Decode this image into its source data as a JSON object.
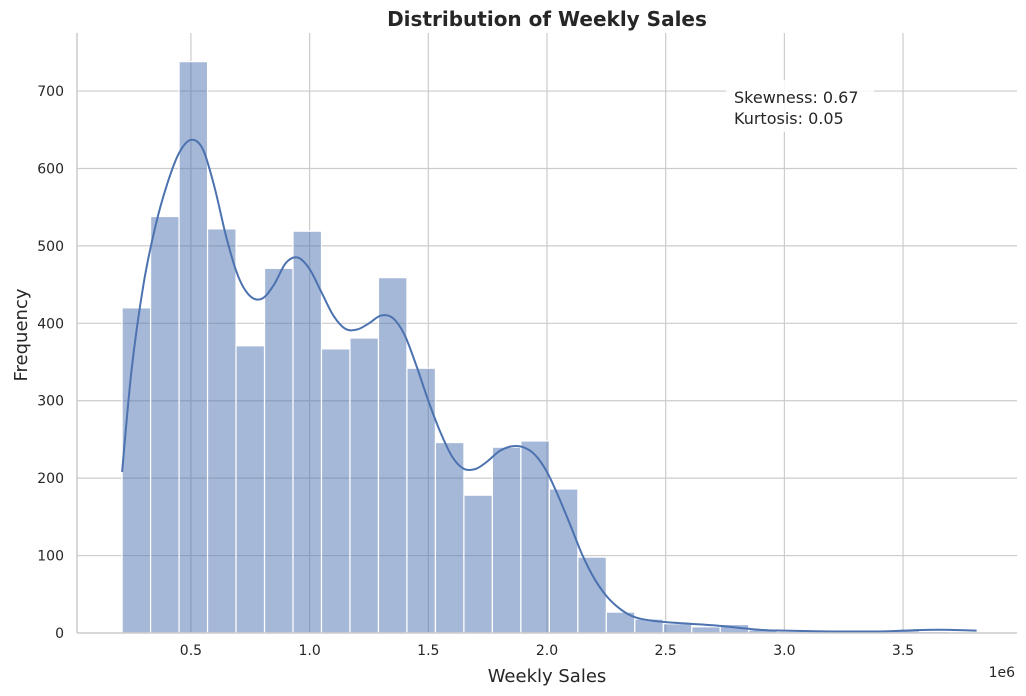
{
  "chart_data": {
    "type": "bar",
    "title": "Distribution of Weekly Sales",
    "xlabel": "Weekly Sales",
    "ylabel": "Frequency",
    "x_offset_label": "1e6",
    "xlim": [
      0.02,
      3.98
    ],
    "ylim": [
      0,
      775
    ],
    "xticks": [
      0.5,
      1.0,
      1.5,
      2.0,
      2.5,
      3.0,
      3.5
    ],
    "xtick_labels": [
      "0.5",
      "1.0",
      "1.5",
      "2.0",
      "2.5",
      "3.0",
      "3.5"
    ],
    "yticks": [
      0,
      100,
      200,
      300,
      400,
      500,
      600,
      700
    ],
    "ytick_labels": [
      "0",
      "100",
      "200",
      "300",
      "400",
      "500",
      "600",
      "700"
    ],
    "grid": true,
    "bin_edges": [
      0.21,
      0.33,
      0.45,
      0.57,
      0.69,
      0.81,
      0.93,
      1.05,
      1.17,
      1.29,
      1.41,
      1.53,
      1.65,
      1.77,
      1.89,
      2.01,
      2.13,
      2.25,
      2.37,
      2.49,
      2.61,
      2.73,
      2.85,
      2.97,
      3.09,
      3.21,
      3.33,
      3.45,
      3.57,
      3.69,
      3.81
    ],
    "values": [
      420,
      538,
      738,
      522,
      371,
      471,
      519,
      367,
      381,
      459,
      342,
      246,
      178,
      240,
      248,
      186,
      98,
      27,
      18,
      12,
      8,
      11,
      4,
      2,
      2,
      1,
      2,
      3,
      2,
      1
    ],
    "kde": {
      "x": [
        0.21,
        0.25,
        0.3,
        0.35,
        0.4,
        0.45,
        0.5,
        0.55,
        0.6,
        0.65,
        0.7,
        0.75,
        0.8,
        0.85,
        0.9,
        0.95,
        1.0,
        1.05,
        1.1,
        1.15,
        1.2,
        1.25,
        1.3,
        1.35,
        1.4,
        1.45,
        1.5,
        1.55,
        1.6,
        1.65,
        1.7,
        1.75,
        1.8,
        1.85,
        1.9,
        1.95,
        2.0,
        2.05,
        2.1,
        2.15,
        2.2,
        2.25,
        2.3,
        2.35,
        2.4,
        2.5,
        2.6,
        2.7,
        2.8,
        2.9,
        3.0,
        3.2,
        3.4,
        3.5,
        3.6,
        3.7,
        3.81
      ],
      "y": [
        208,
        340,
        450,
        525,
        580,
        620,
        637,
        625,
        575,
        510,
        460,
        435,
        432,
        450,
        478,
        485,
        470,
        440,
        410,
        393,
        392,
        400,
        410,
        407,
        385,
        345,
        300,
        260,
        228,
        212,
        212,
        222,
        235,
        241,
        240,
        230,
        208,
        175,
        138,
        100,
        70,
        48,
        33,
        23,
        18,
        14,
        12,
        10,
        7,
        4,
        3,
        2,
        2,
        3,
        4,
        4,
        3
      ]
    },
    "annotations": [
      "Skewness: 0.67",
      "Kurtosis: 0.05"
    ]
  }
}
